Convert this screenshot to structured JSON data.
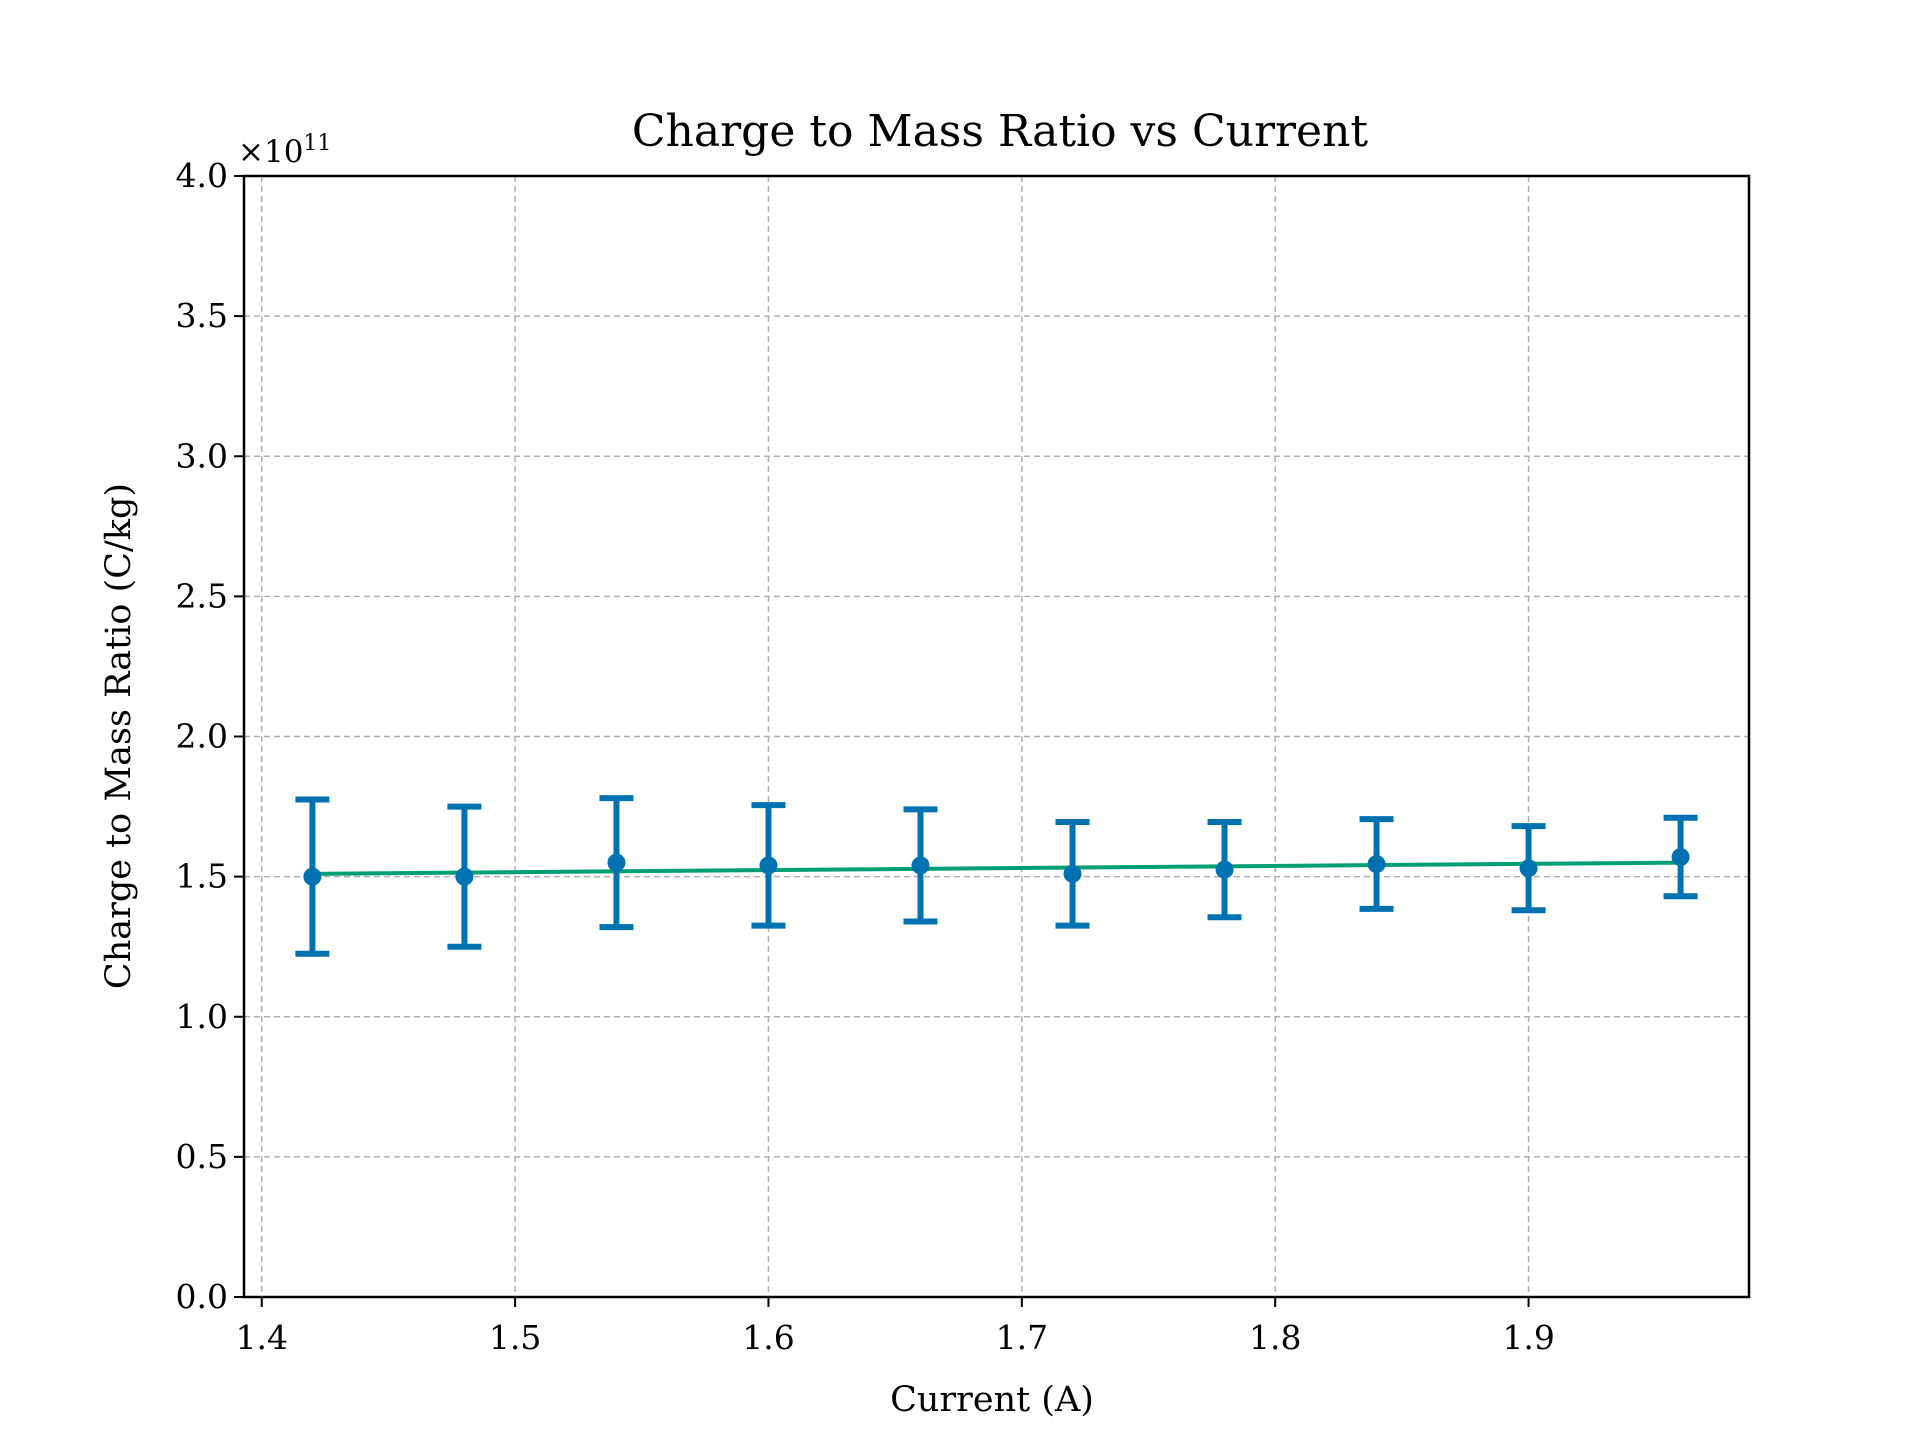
{
  "chart_data": {
    "type": "scatter",
    "title": "Charge to Mass Ratio vs Current",
    "xlabel": "Current (A)",
    "ylabel": "Charge to Mass Ratio (C/kg)",
    "y_scale_label": "×10",
    "y_scale_exponent": "11",
    "xlim": [
      1.393,
      1.987
    ],
    "ylim": [
      0.0,
      4.0
    ],
    "xticks": [
      1.4,
      1.5,
      1.6,
      1.7,
      1.8,
      1.9
    ],
    "xtick_labels": [
      "1.4",
      "1.5",
      "1.6",
      "1.7",
      "1.8",
      "1.9"
    ],
    "yticks": [
      0.0,
      0.5,
      1.0,
      1.5,
      2.0,
      2.5,
      3.0,
      3.5,
      4.0
    ],
    "ytick_labels": [
      "0.0",
      "0.5",
      "1.0",
      "1.5",
      "2.0",
      "2.5",
      "3.0",
      "3.5",
      "4.0"
    ],
    "grid": true,
    "colors": {
      "points": "#0072b2",
      "fit": "#009e73"
    },
    "series": [
      {
        "type": "errorbar",
        "x": [
          1.42,
          1.48,
          1.54,
          1.6,
          1.66,
          1.72,
          1.78,
          1.84,
          1.9,
          1.96
        ],
        "y": [
          1.5,
          1.5,
          1.55,
          1.54,
          1.54,
          1.51,
          1.525,
          1.545,
          1.53,
          1.57
        ],
        "yerr": [
          0.275,
          0.25,
          0.23,
          0.215,
          0.2,
          0.185,
          0.17,
          0.16,
          0.15,
          0.14
        ]
      },
      {
        "type": "line",
        "x": [
          1.42,
          1.96
        ],
        "y": [
          1.51,
          1.55
        ]
      }
    ]
  }
}
